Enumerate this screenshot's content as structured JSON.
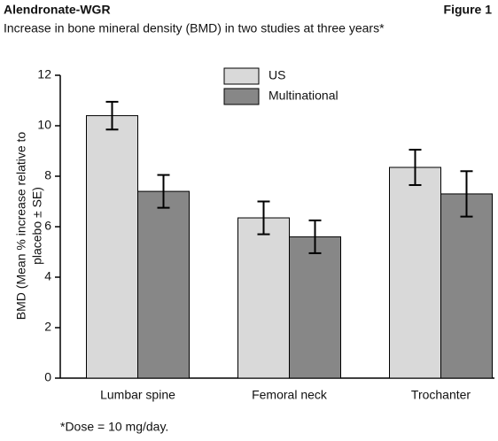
{
  "chart_data": {
    "type": "bar",
    "title": "Alendronate-WGR",
    "figure_label": "Figure 1",
    "subtitle": "Increase in bone mineral density (BMD) in two studies at three years*",
    "ylabel": [
      "BMD (Mean % increase relative to",
      "placebo ± SE)"
    ],
    "footnote": "*Dose = 10 mg/day.",
    "categories": [
      "Lumbar spine",
      "Femoral neck",
      "Trochanter"
    ],
    "series": [
      {
        "name": "US",
        "color": "#d9d9d9",
        "values": [
          10.4,
          6.35,
          8.35
        ],
        "errors": [
          0.55,
          0.65,
          0.7
        ]
      },
      {
        "name": "Multinational",
        "color": "#878787",
        "values": [
          7.4,
          5.6,
          7.3
        ],
        "errors": [
          0.65,
          0.65,
          0.9
        ]
      }
    ],
    "ylim": [
      0,
      12
    ],
    "yticks": [
      0,
      2,
      4,
      6,
      8,
      10,
      12
    ],
    "grid": false
  }
}
